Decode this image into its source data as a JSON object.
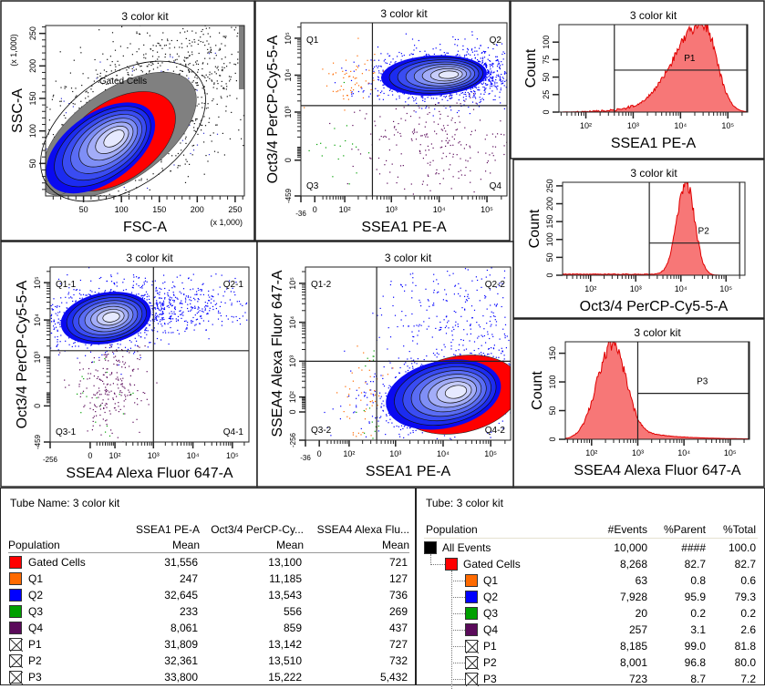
{
  "colors": {
    "gated_cells": "#ff0000",
    "q1": "#ff6a00",
    "q2": "#0000ff",
    "q3": "#00a000",
    "q4": "#5a0a5a",
    "all_events": "#000000",
    "histogram_fill": "#f77777",
    "histogram_line": "#e00000"
  },
  "chart_data": [
    {
      "type": "scatter",
      "title": "3 color kit",
      "xlabel": "FSC-A",
      "ylabel": "SSC-A",
      "xaxis": {
        "scale": "linear",
        "range": [
          0,
          262144
        ],
        "multiplier": "(x 1,000)",
        "ticks": [
          {
            "v": 50000,
            "label": "50"
          },
          {
            "v": 100000,
            "label": "100"
          },
          {
            "v": 150000,
            "label": "150"
          },
          {
            "v": 200000,
            "label": "200"
          },
          {
            "v": 250000,
            "label": "250"
          }
        ]
      },
      "yaxis": {
        "scale": "linear",
        "range": [
          0,
          262144
        ],
        "multiplier": "(x 1,000)",
        "ticks": [
          {
            "v": 50000,
            "label": "50"
          },
          {
            "v": 100000,
            "label": "100"
          },
          {
            "v": 150000,
            "label": "150"
          },
          {
            "v": 200000,
            "label": "200"
          },
          {
            "v": 250000,
            "label": "250"
          }
        ]
      },
      "gate_label": "Gated Cells",
      "display": "contour with outliers"
    },
    {
      "type": "scatter",
      "title": "3 color kit",
      "xlabel": "SSEA1 PE-A",
      "ylabel": "Oct3/4 PerCP-Cy5-5-A",
      "xaxis": {
        "scale": "biexponential",
        "range": [
          -36,
          262144
        ],
        "ticks": [
          {
            "v": -36,
            "label": "-36"
          },
          {
            "v": 0,
            "label": "0"
          },
          {
            "v": 100,
            "label": "10²"
          },
          {
            "v": 1000,
            "label": "10³"
          },
          {
            "v": 10000,
            "label": "10⁴"
          },
          {
            "v": 100000,
            "label": "10⁵"
          }
        ]
      },
      "yaxis": {
        "scale": "biexponential",
        "range": [
          -459,
          262144
        ],
        "ticks": [
          {
            "v": -459,
            "label": "-459"
          },
          {
            "v": 0,
            "label": "0"
          },
          {
            "v": 1000,
            "label": "10³"
          },
          {
            "v": 10000,
            "label": "10⁴"
          },
          {
            "v": 100000,
            "label": "10⁵"
          }
        ]
      },
      "quadrant": {
        "x": 400,
        "y": 1500,
        "labels": [
          "Q1",
          "Q2",
          "Q3",
          "Q4"
        ]
      }
    },
    {
      "type": "histogram",
      "title": "3 color kit",
      "xlabel": "SSEA1 PE-A",
      "ylabel": "Count",
      "xaxis": {
        "scale": "log",
        "range": [
          27,
          262144
        ],
        "ticks": [
          {
            "v": 100,
            "label": "10²"
          },
          {
            "v": 1000,
            "label": "10³"
          },
          {
            "v": 10000,
            "label": "10⁴"
          },
          {
            "v": 100000,
            "label": "10⁵"
          }
        ]
      },
      "yaxis": {
        "scale": "linear",
        "range": [
          0,
          125
        ],
        "ticks": [
          {
            "v": 0,
            "label": "0"
          },
          {
            "v": 25,
            "label": "25"
          },
          {
            "v": 50,
            "label": "50"
          },
          {
            "v": 75,
            "label": "75"
          },
          {
            "v": 100,
            "label": "100"
          }
        ]
      },
      "peak": {
        "x": 30000,
        "count": 128
      },
      "interval_gate": {
        "name": "P1",
        "range": [
          400,
          262144
        ],
        "count": 60
      }
    },
    {
      "type": "histogram",
      "title": "3 color kit",
      "xlabel": "Oct3/4 PerCP-Cy5-5-A",
      "ylabel": "Count",
      "xaxis": {
        "scale": "log",
        "range": [
          24,
          262144
        ],
        "ticks": [
          {
            "v": 100,
            "label": "10²"
          },
          {
            "v": 1000,
            "label": "10³"
          },
          {
            "v": 10000,
            "label": "10⁴"
          },
          {
            "v": 100000,
            "label": "10⁵"
          }
        ]
      },
      "yaxis": {
        "scale": "linear",
        "range": [
          0,
          260
        ],
        "ticks": [
          {
            "v": 0,
            "label": "0"
          },
          {
            "v": 50,
            "label": "50"
          },
          {
            "v": 100,
            "label": "100"
          },
          {
            "v": 150,
            "label": "150"
          },
          {
            "v": 200,
            "label": "200"
          },
          {
            "v": 250,
            "label": "250"
          }
        ]
      },
      "peak": {
        "x": 13000,
        "count": 258
      },
      "interval_gate": {
        "name": "P2",
        "range": [
          2000,
          200000
        ],
        "count": 90
      }
    },
    {
      "type": "histogram",
      "title": "3 color kit",
      "xlabel": "SSEA4 Alexa Fluor 647-A",
      "ylabel": "Count",
      "xaxis": {
        "scale": "log",
        "range": [
          27,
          262144
        ],
        "ticks": [
          {
            "v": 100,
            "label": "10²"
          },
          {
            "v": 1000,
            "label": "10³"
          },
          {
            "v": 10000,
            "label": "10⁴"
          },
          {
            "v": 100000,
            "label": "10⁵"
          }
        ]
      },
      "yaxis": {
        "scale": "linear",
        "range": [
          0,
          170
        ],
        "ticks": [
          {
            "v": 0,
            "label": "0"
          },
          {
            "v": 50,
            "label": "50"
          },
          {
            "v": 100,
            "label": "100"
          },
          {
            "v": 150,
            "label": "150"
          }
        ]
      },
      "peak": {
        "x": 280,
        "count": 165
      },
      "interval_gate": {
        "name": "P3",
        "range": [
          1000,
          262144
        ],
        "count": 80
      }
    },
    {
      "type": "scatter",
      "title": "3 color kit",
      "xlabel": "SSEA4 Alexa Fluor 647-A",
      "ylabel": "Oct3/4 PerCP-Cy5-5-A",
      "xaxis": {
        "scale": "biexponential",
        "range": [
          -256,
          262144
        ],
        "ticks": [
          {
            "v": -256,
            "label": "-256"
          },
          {
            "v": 0,
            "label": "0"
          },
          {
            "v": 100,
            "label": "10²"
          },
          {
            "v": 1000,
            "label": "10³"
          },
          {
            "v": 10000,
            "label": "10⁴"
          },
          {
            "v": 100000,
            "label": "10⁵"
          }
        ]
      },
      "yaxis": {
        "scale": "biexponential",
        "range": [
          -459,
          262144
        ],
        "ticks": [
          {
            "v": -459,
            "label": "-459"
          },
          {
            "v": 0,
            "label": "0"
          },
          {
            "v": 1000,
            "label": "10³"
          },
          {
            "v": 10000,
            "label": "10⁴"
          },
          {
            "v": 100000,
            "label": "10⁵"
          }
        ]
      },
      "quadrant": {
        "x": 1000,
        "y": 1500,
        "labels": [
          "Q1-1",
          "Q2-1",
          "Q3-1",
          "Q4-1"
        ]
      }
    },
    {
      "type": "scatter",
      "title": "3 color kit",
      "xlabel": "SSEA1 PE-A",
      "ylabel": "SSEA4 Alexa Fluor 647-A",
      "xaxis": {
        "scale": "biexponential",
        "range": [
          -36,
          262144
        ],
        "ticks": [
          {
            "v": -36,
            "label": "-36"
          },
          {
            "v": 0,
            "label": "0"
          },
          {
            "v": 100,
            "label": "10²"
          },
          {
            "v": 1000,
            "label": "10³"
          },
          {
            "v": 10000,
            "label": "10⁴"
          },
          {
            "v": 100000,
            "label": "10⁵"
          }
        ]
      },
      "yaxis": {
        "scale": "biexponential",
        "range": [
          -256,
          262144
        ],
        "ticks": [
          {
            "v": -256,
            "label": "-256"
          },
          {
            "v": 0,
            "label": "0"
          },
          {
            "v": 100,
            "label": "10²"
          },
          {
            "v": 1000,
            "label": "10³"
          },
          {
            "v": 10000,
            "label": "10⁴"
          },
          {
            "v": 100000,
            "label": "10⁵"
          }
        ]
      },
      "quadrant": {
        "x": 400,
        "y": 1000,
        "labels": [
          "Q1-2",
          "Q2-2",
          "Q3-2",
          "Q4-2"
        ]
      }
    }
  ],
  "stats_table": {
    "tube_label": "Tube Name:  3 color kit",
    "header_top": [
      "SSEA1 PE-A",
      "Oct3/4 PerCP-Cy...",
      "SSEA4 Alexa Flu..."
    ],
    "header": [
      "Population",
      "Mean",
      "Mean",
      "Mean"
    ],
    "rows": [
      {
        "name": "Gated Cells",
        "swatch": "gated_cells",
        "v": [
          "31,556",
          "13,100",
          "721"
        ]
      },
      {
        "name": "Q1",
        "swatch": "q1",
        "v": [
          "247",
          "11,185",
          "127"
        ]
      },
      {
        "name": "Q2",
        "swatch": "q2",
        "v": [
          "32,645",
          "13,543",
          "736"
        ]
      },
      {
        "name": "Q3",
        "swatch": "q3",
        "v": [
          "233",
          "556",
          "269"
        ]
      },
      {
        "name": "Q4",
        "swatch": "q4",
        "v": [
          "8,061",
          "859",
          "437"
        ]
      },
      {
        "name": "P1",
        "swatch": "crossed",
        "v": [
          "31,809",
          "13,142",
          "727"
        ]
      },
      {
        "name": "P2",
        "swatch": "crossed",
        "v": [
          "32,361",
          "13,510",
          "732"
        ]
      },
      {
        "name": "P3",
        "swatch": "crossed",
        "v": [
          "33,800",
          "15,222",
          "5,432"
        ]
      }
    ]
  },
  "hierarchy_table": {
    "tube_label": "Tube:   3 color kit",
    "header": [
      "Population",
      "#Events",
      "%Parent",
      "%Total"
    ],
    "rows": [
      {
        "name": "All Events",
        "swatch": "all_events",
        "level": 0,
        "v": [
          "10,000",
          "####",
          "100.0"
        ]
      },
      {
        "name": "Gated Cells",
        "swatch": "gated_cells",
        "level": 1,
        "v": [
          "8,268",
          "82.7",
          "82.7"
        ]
      },
      {
        "name": "Q1",
        "swatch": "q1",
        "level": 2,
        "v": [
          "63",
          "0.8",
          "0.6"
        ]
      },
      {
        "name": "Q2",
        "swatch": "q2",
        "level": 2,
        "v": [
          "7,928",
          "95.9",
          "79.3"
        ]
      },
      {
        "name": "Q3",
        "swatch": "q3",
        "level": 2,
        "v": [
          "20",
          "0.2",
          "0.2"
        ]
      },
      {
        "name": "Q4",
        "swatch": "q4",
        "level": 2,
        "v": [
          "257",
          "3.1",
          "2.6"
        ]
      },
      {
        "name": "P1",
        "swatch": "crossed",
        "level": 2,
        "v": [
          "8,185",
          "99.0",
          "81.8"
        ]
      },
      {
        "name": "P2",
        "swatch": "crossed",
        "level": 2,
        "v": [
          "8,001",
          "96.8",
          "80.0"
        ]
      },
      {
        "name": "P3",
        "swatch": "crossed",
        "level": 2,
        "v": [
          "723",
          "8.7",
          "7.2"
        ]
      }
    ]
  }
}
